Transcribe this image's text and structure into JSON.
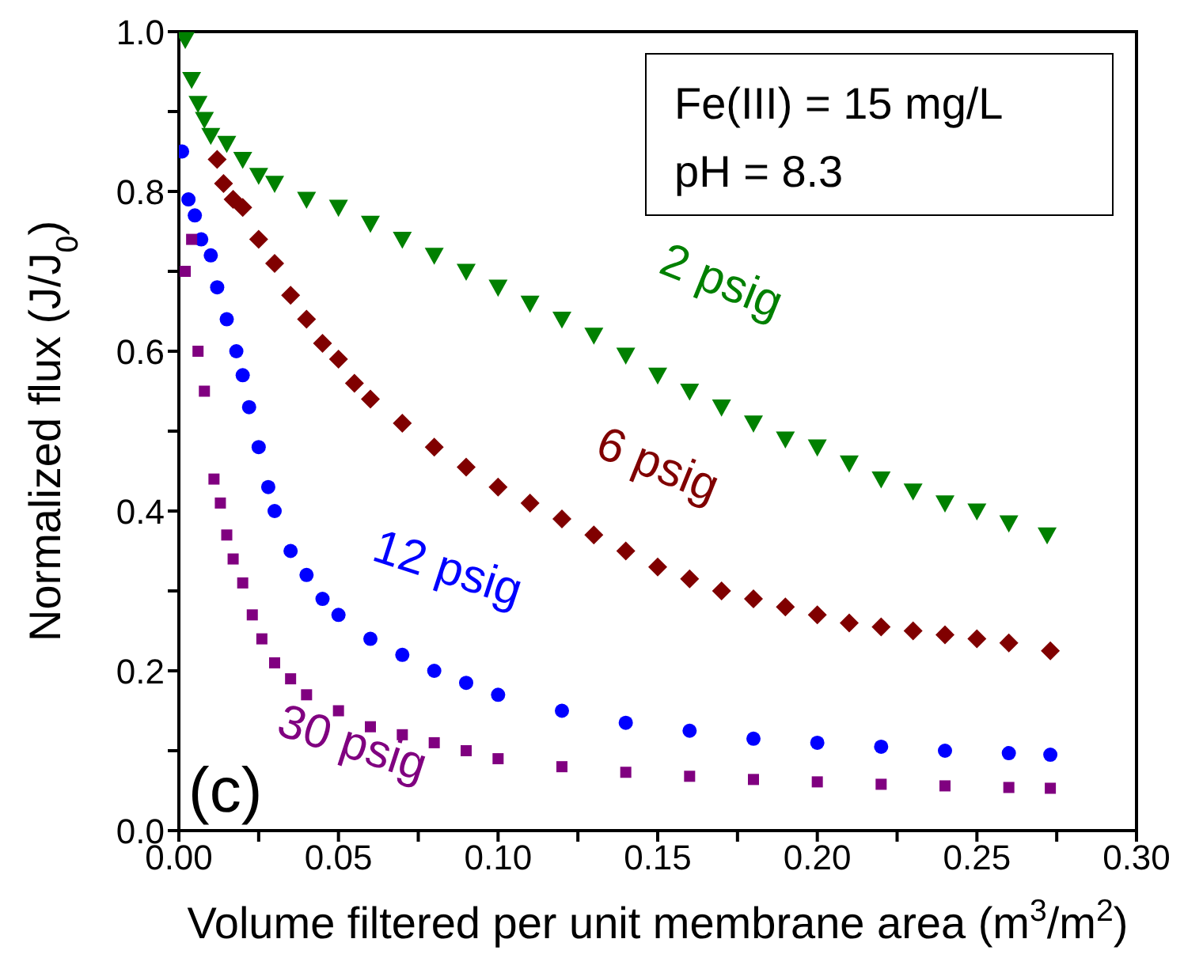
{
  "chart_data": {
    "type": "scatter",
    "xlabel": "Volume filtered per unit membrane area (m$^{3}$/m$^{2}$)",
    "ylabel": "Normalized flux (J/J$_{0}$)",
    "xlim": [
      0,
      0.3
    ],
    "ylim": [
      0,
      1
    ],
    "xticks": [
      {
        "value": 0,
        "label": "0.00"
      },
      {
        "value": 0.025,
        "label": null
      },
      {
        "value": 0.05,
        "label": "0.05"
      },
      {
        "value": 0.075,
        "label": null
      },
      {
        "value": 0.1,
        "label": "0.10"
      },
      {
        "value": 0.125,
        "label": null
      },
      {
        "value": 0.15,
        "label": "0.15"
      },
      {
        "value": 0.175,
        "label": null
      },
      {
        "value": 0.2,
        "label": "0.20"
      },
      {
        "value": 0.225,
        "label": null
      },
      {
        "value": 0.25,
        "label": "0.25"
      },
      {
        "value": 0.275,
        "label": null
      },
      {
        "value": 0.3,
        "label": "0.30"
      }
    ],
    "yticks": [
      {
        "value": 0,
        "label": "0.0"
      },
      {
        "value": 0.1,
        "label": null
      },
      {
        "value": 0.2,
        "label": "0.2"
      },
      {
        "value": 0.3,
        "label": null
      },
      {
        "value": 0.4,
        "label": "0.4"
      },
      {
        "value": 0.5,
        "label": null
      },
      {
        "value": 0.6,
        "label": "0.6"
      },
      {
        "value": 0.7,
        "label": null
      },
      {
        "value": 0.8,
        "label": "0.8"
      },
      {
        "value": 0.9,
        "label": null
      },
      {
        "value": 1,
        "label": "1.0"
      }
    ],
    "series": [
      {
        "name": "2 psig",
        "color": "#008000",
        "marker": "triangle",
        "x": [
          0.002,
          0.004,
          0.006,
          0.008,
          0.01,
          0.015,
          0.02,
          0.025,
          0.03,
          0.04,
          0.05,
          0.06,
          0.07,
          0.08,
          0.09,
          0.1,
          0.11,
          0.12,
          0.13,
          0.14,
          0.15,
          0.16,
          0.17,
          0.18,
          0.19,
          0.2,
          0.21,
          0.22,
          0.23,
          0.24,
          0.25,
          0.26,
          0.272
        ],
        "values": [
          0.99,
          0.94,
          0.91,
          0.89,
          0.87,
          0.86,
          0.84,
          0.82,
          0.81,
          0.79,
          0.78,
          0.76,
          0.74,
          0.72,
          0.7,
          0.68,
          0.66,
          0.64,
          0.62,
          0.595,
          0.57,
          0.55,
          0.53,
          0.51,
          0.49,
          0.48,
          0.46,
          0.44,
          0.425,
          0.41,
          0.4,
          0.385,
          0.37
        ]
      },
      {
        "name": "6 psig",
        "color": "#800000",
        "marker": "diamond",
        "x": [
          0.012,
          0.014,
          0.017,
          0.02,
          0.025,
          0.03,
          0.035,
          0.04,
          0.045,
          0.05,
          0.055,
          0.06,
          0.07,
          0.08,
          0.09,
          0.1,
          0.11,
          0.12,
          0.13,
          0.14,
          0.15,
          0.16,
          0.17,
          0.18,
          0.19,
          0.2,
          0.21,
          0.22,
          0.23,
          0.24,
          0.25,
          0.26,
          0.273
        ],
        "values": [
          0.84,
          0.81,
          0.79,
          0.78,
          0.74,
          0.71,
          0.67,
          0.64,
          0.61,
          0.59,
          0.56,
          0.54,
          0.51,
          0.48,
          0.455,
          0.43,
          0.41,
          0.39,
          0.37,
          0.35,
          0.33,
          0.315,
          0.3,
          0.29,
          0.28,
          0.27,
          0.26,
          0.255,
          0.25,
          0.245,
          0.24,
          0.235,
          0.225
        ]
      },
      {
        "name": "12 psig",
        "color": "#0000ff",
        "marker": "circle",
        "x": [
          0.001,
          0.003,
          0.005,
          0.007,
          0.01,
          0.012,
          0.015,
          0.018,
          0.02,
          0.022,
          0.025,
          0.028,
          0.03,
          0.035,
          0.04,
          0.045,
          0.05,
          0.06,
          0.07,
          0.08,
          0.09,
          0.1,
          0.12,
          0.14,
          0.16,
          0.18,
          0.2,
          0.22,
          0.24,
          0.26,
          0.273
        ],
        "values": [
          0.85,
          0.79,
          0.77,
          0.74,
          0.72,
          0.68,
          0.64,
          0.6,
          0.57,
          0.53,
          0.48,
          0.43,
          0.4,
          0.35,
          0.32,
          0.29,
          0.27,
          0.24,
          0.22,
          0.2,
          0.185,
          0.17,
          0.15,
          0.135,
          0.125,
          0.115,
          0.11,
          0.105,
          0.1,
          0.097,
          0.095
        ]
      },
      {
        "name": "30 psig",
        "color": "#800080",
        "marker": "square",
        "x": [
          0.002,
          0.004,
          0.006,
          0.008,
          0.011,
          0.013,
          0.015,
          0.017,
          0.02,
          0.023,
          0.026,
          0.03,
          0.035,
          0.04,
          0.05,
          0.06,
          0.07,
          0.08,
          0.09,
          0.1,
          0.12,
          0.14,
          0.16,
          0.18,
          0.2,
          0.22,
          0.24,
          0.26,
          0.273
        ],
        "values": [
          0.7,
          0.74,
          0.6,
          0.55,
          0.44,
          0.41,
          0.37,
          0.34,
          0.31,
          0.27,
          0.24,
          0.21,
          0.19,
          0.17,
          0.15,
          0.13,
          0.12,
          0.11,
          0.1,
          0.09,
          0.08,
          0.073,
          0.068,
          0.064,
          0.061,
          0.058,
          0.056,
          0.054,
          0.053
        ]
      }
    ],
    "annotations": [
      "Fe(III) = 15 mg/L",
      "pH = 8.3",
      "(c)"
    ]
  }
}
